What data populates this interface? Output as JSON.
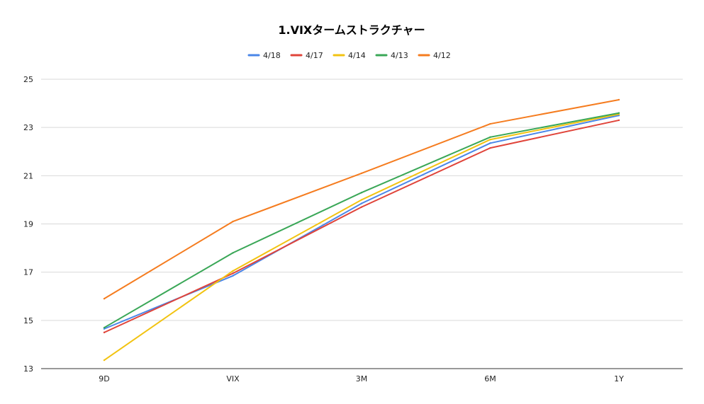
{
  "chart_data": {
    "type": "line",
    "title": "1.VIXタームストラクチャー",
    "xlabel": "",
    "ylabel": "",
    "categories": [
      "9D",
      "VIX",
      "3M",
      "6M",
      "1Y"
    ],
    "ylim": [
      13,
      25
    ],
    "yticks": [
      13,
      15,
      17,
      19,
      21,
      23,
      25
    ],
    "grid": true,
    "legend_position": "top",
    "series": [
      {
        "name": "4/18",
        "color": "#4a86e8",
        "values": [
          14.65,
          16.85,
          19.85,
          22.35,
          23.5
        ]
      },
      {
        "name": "4/17",
        "color": "#e0443a",
        "values": [
          14.5,
          16.95,
          19.7,
          22.15,
          23.3
        ]
      },
      {
        "name": "4/14",
        "color": "#f2c311",
        "values": [
          13.35,
          17.05,
          20.0,
          22.5,
          23.55
        ]
      },
      {
        "name": "4/13",
        "color": "#3aa757",
        "values": [
          14.7,
          17.8,
          20.3,
          22.6,
          23.6
        ]
      },
      {
        "name": "4/12",
        "color": "#f57c1f",
        "values": [
          15.9,
          19.1,
          21.1,
          23.15,
          24.15
        ]
      }
    ]
  }
}
